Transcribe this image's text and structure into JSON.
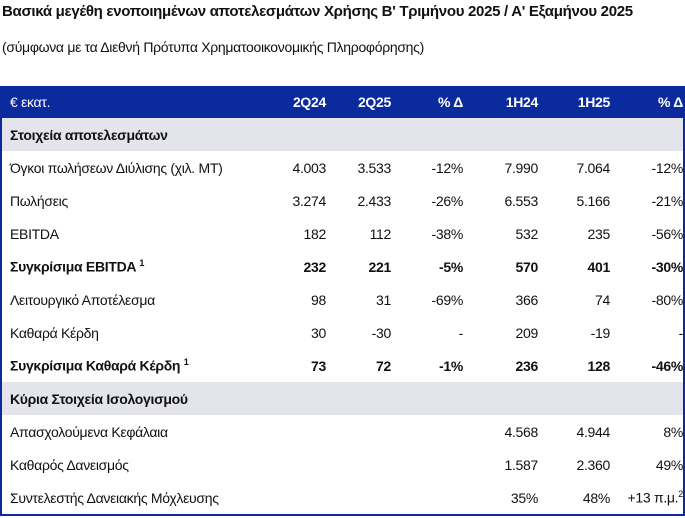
{
  "title": "Βασικά μεγέθη ενοποιημένων αποτελεσμάτων Χρήσης Β' Τριμήνου 2025 / Α' Εξαμήνου 2025",
  "subtitle": "(σύμφωνα με τα Διεθνή Πρότυπα Χρηματοοικονομικής Πληροφόρησης)",
  "header": [
    "€ εκατ.",
    "2Q24",
    "2Q25",
    "% Δ",
    "1H24",
    "1H25",
    "% Δ"
  ],
  "sections": [
    {
      "title": "Στοιχεία αποτελεσμάτων",
      "rows": [
        {
          "label": "Όγκοι πωλήσεων Διύλισης (χιλ. ΜΤ)",
          "sup": "",
          "bold": false,
          "values": [
            "4.003",
            "3.533",
            "-12%",
            "7.990",
            "7.064",
            "-12%"
          ]
        },
        {
          "label": "Πωλήσεις",
          "sup": "",
          "bold": false,
          "values": [
            "3.274",
            "2.433",
            "-26%",
            "6.553",
            "5.166",
            "-21%"
          ]
        },
        {
          "label": "EBITDA",
          "sup": "",
          "bold": false,
          "values": [
            "182",
            "112",
            "-38%",
            "532",
            "235",
            "-56%"
          ]
        },
        {
          "label": "Συγκρίσιμα EBITDA",
          "sup": "1",
          "bold": true,
          "values": [
            "232",
            "221",
            "-5%",
            "570",
            "401",
            "-30%"
          ]
        },
        {
          "label": "Λειτουργικό Αποτέλεσμα",
          "sup": "",
          "bold": false,
          "values": [
            "98",
            "31",
            "-69%",
            "366",
            "74",
            "-80%"
          ]
        },
        {
          "label": "Καθαρά Κέρδη",
          "sup": "",
          "bold": false,
          "values": [
            "30",
            "-30",
            "-",
            "209",
            "-19",
            "-"
          ]
        },
        {
          "label": "Συγκρίσιμα Καθαρά Κέρδη",
          "sup": "1",
          "bold": true,
          "values": [
            "73",
            "72",
            "-1%",
            "236",
            "128",
            "-46%"
          ]
        }
      ]
    },
    {
      "title": "Κύρια Στοιχεία Ισολογισμού",
      "rows": [
        {
          "label": "Απασχολούμενα Κεφάλαια",
          "sup": "",
          "bold": false,
          "values": [
            "",
            "",
            "",
            "4.568",
            "4.944",
            "8%"
          ]
        },
        {
          "label": "Καθαρός Δανεισμός",
          "sup": "",
          "bold": false,
          "values": [
            "",
            "",
            "",
            "1.587",
            "2.360",
            "49%"
          ]
        },
        {
          "label": "Συντελεστής Δανειακής Μόχλευσης",
          "sup": "",
          "bold": false,
          "values": [
            "",
            "",
            "",
            "35%",
            "48%",
            "+13 π.μ."
          ],
          "last_sup": "2"
        }
      ]
    }
  ],
  "colors": {
    "header_bg": "#0a2a9e",
    "section_bg": "#e4e4ec"
  }
}
